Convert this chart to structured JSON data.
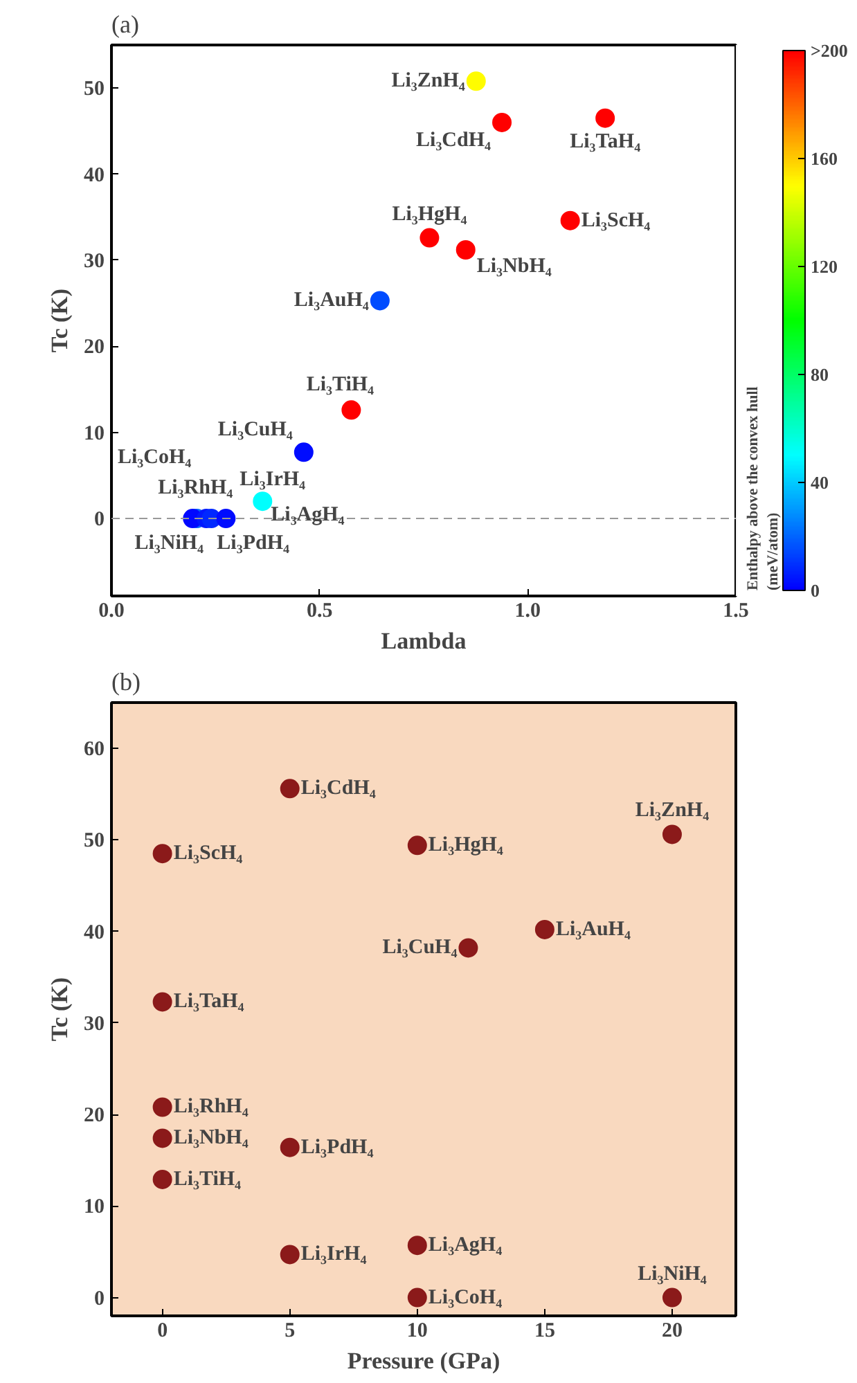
{
  "chart_data": [
    {
      "type": "scatter",
      "title": "(a)",
      "xlabel": "Lambda",
      "ylabel": "Tc (K)",
      "clabel": "Enthalpy above the convex hull\n(meV/atom)",
      "x": [
        0.876,
        0.938,
        1.186,
        0.764,
        0.851,
        1.102,
        0.645,
        0.576,
        0.462,
        0.363,
        0.205,
        0.195,
        0.228,
        0.24,
        0.275
      ],
      "values": [
        50.8,
        46.0,
        46.5,
        32.6,
        31.2,
        34.6,
        25.3,
        12.6,
        7.7,
        2.0,
        0,
        0,
        0,
        0,
        0
      ],
      "cvalues": [
        150,
        200,
        200,
        200,
        200,
        200,
        15,
        200,
        3,
        50,
        20,
        2,
        5,
        8,
        3
      ],
      "clim": [
        0,
        200
      ],
      "cticks": [
        0,
        40,
        80,
        120,
        160,
        {
          "value": 200,
          "label": ">200"
        }
      ],
      "xlim": [
        0,
        1.5
      ],
      "xticks": [
        {
          "value": 0,
          "label": "0.0"
        },
        0.5,
        {
          "value": 1,
          "label": "1.0"
        },
        1.5
      ],
      "ylim": [
        -9,
        55
      ],
      "yticks": [
        0,
        10,
        20,
        30,
        40,
        50
      ],
      "ref_lines": [
        {
          "axis": "y",
          "value": 0,
          "color": "#999999",
          "line_style": "dashed"
        }
      ],
      "marker": "circle",
      "grid": false,
      "annotations": [
        {
          "text": "Li₃ZnH₄",
          "x": 0.876,
          "y": 50.8
        },
        {
          "text": "Li₃CdH₄",
          "x": 0.938,
          "y": 46.0
        },
        {
          "text": "Li₃TaH₄",
          "x": 1.186,
          "y": 46.5
        },
        {
          "text": "Li₃HgH₄",
          "x": 0.764,
          "y": 32.6
        },
        {
          "text": "Li₃NbH₄",
          "x": 0.851,
          "y": 31.2
        },
        {
          "text": "Li₃ScH₄",
          "x": 1.102,
          "y": 34.6
        },
        {
          "text": "Li₃AuH₄",
          "x": 0.645,
          "y": 25.3
        },
        {
          "text": "Li₃TiH₄",
          "x": 0.576,
          "y": 12.6
        },
        {
          "text": "Li₃CuH₄",
          "x": 0.462,
          "y": 7.7
        },
        {
          "text": "Li₃AgH₄",
          "x": 0.363,
          "y": 2.0
        },
        {
          "text": "Li₃CoH₄",
          "x": 0.205,
          "y": 0
        },
        {
          "text": "Li₃RhH₄",
          "x": 0.195,
          "y": 0
        },
        {
          "text": "Li₃NiH₄",
          "x": 0.228,
          "y": 0
        },
        {
          "text": "Li₃PdH₄",
          "x": 0.24,
          "y": 0
        },
        {
          "text": "Li₃IrH₄",
          "x": 0.275,
          "y": 0
        }
      ]
    },
    {
      "type": "scatter",
      "title": "(b)",
      "xlabel": "Pressure (GPa)",
      "ylabel": "Tc (K)",
      "color": "#8b1a1a",
      "x": [
        5,
        0,
        10,
        20,
        12,
        15,
        0,
        0,
        0,
        5,
        0,
        5,
        10,
        10,
        20
      ],
      "values": [
        55.6,
        48.5,
        49.4,
        50.6,
        38.2,
        40.2,
        32.3,
        20.8,
        17.4,
        16.4,
        12.9,
        4.7,
        5.7,
        0,
        0
      ],
      "xlim": [
        -2,
        22.5
      ],
      "xticks": [
        0,
        5,
        10,
        15,
        20
      ],
      "ylim": [
        -2,
        65
      ],
      "yticks": [
        0,
        10,
        20,
        30,
        40,
        50,
        60
      ],
      "marker": "circle",
      "grid": false,
      "annotations": [
        {
          "text": "Li₃CdH₄",
          "x": 5,
          "y": 55.6
        },
        {
          "text": "Li₃ScH₄",
          "x": 0,
          "y": 48.5
        },
        {
          "text": "Li₃HgH₄",
          "x": 10,
          "y": 49.4
        },
        {
          "text": "Li₃ZnH₄",
          "x": 20,
          "y": 50.6
        },
        {
          "text": "Li₃CuH₄",
          "x": 12,
          "y": 38.2
        },
        {
          "text": "Li₃AuH₄",
          "x": 15,
          "y": 40.2
        },
        {
          "text": "Li₃TaH₄",
          "x": 0,
          "y": 32.3
        },
        {
          "text": "Li₃RhH₄",
          "x": 0,
          "y": 20.8
        },
        {
          "text": "Li₃NbH₄",
          "x": 0,
          "y": 17.4
        },
        {
          "text": "Li₃PdH₄",
          "x": 5,
          "y": 16.4
        },
        {
          "text": "Li₃TiH₄",
          "x": 0,
          "y": 12.9
        },
        {
          "text": "Li₃IrH₄",
          "x": 5,
          "y": 4.7
        },
        {
          "text": "Li₃AgH₄",
          "x": 10,
          "y": 5.7
        },
        {
          "text": "Li₃CoH₄",
          "x": 10,
          "y": 0
        },
        {
          "text": "Li₃NiH₄",
          "x": 20,
          "y": 0
        }
      ]
    }
  ]
}
